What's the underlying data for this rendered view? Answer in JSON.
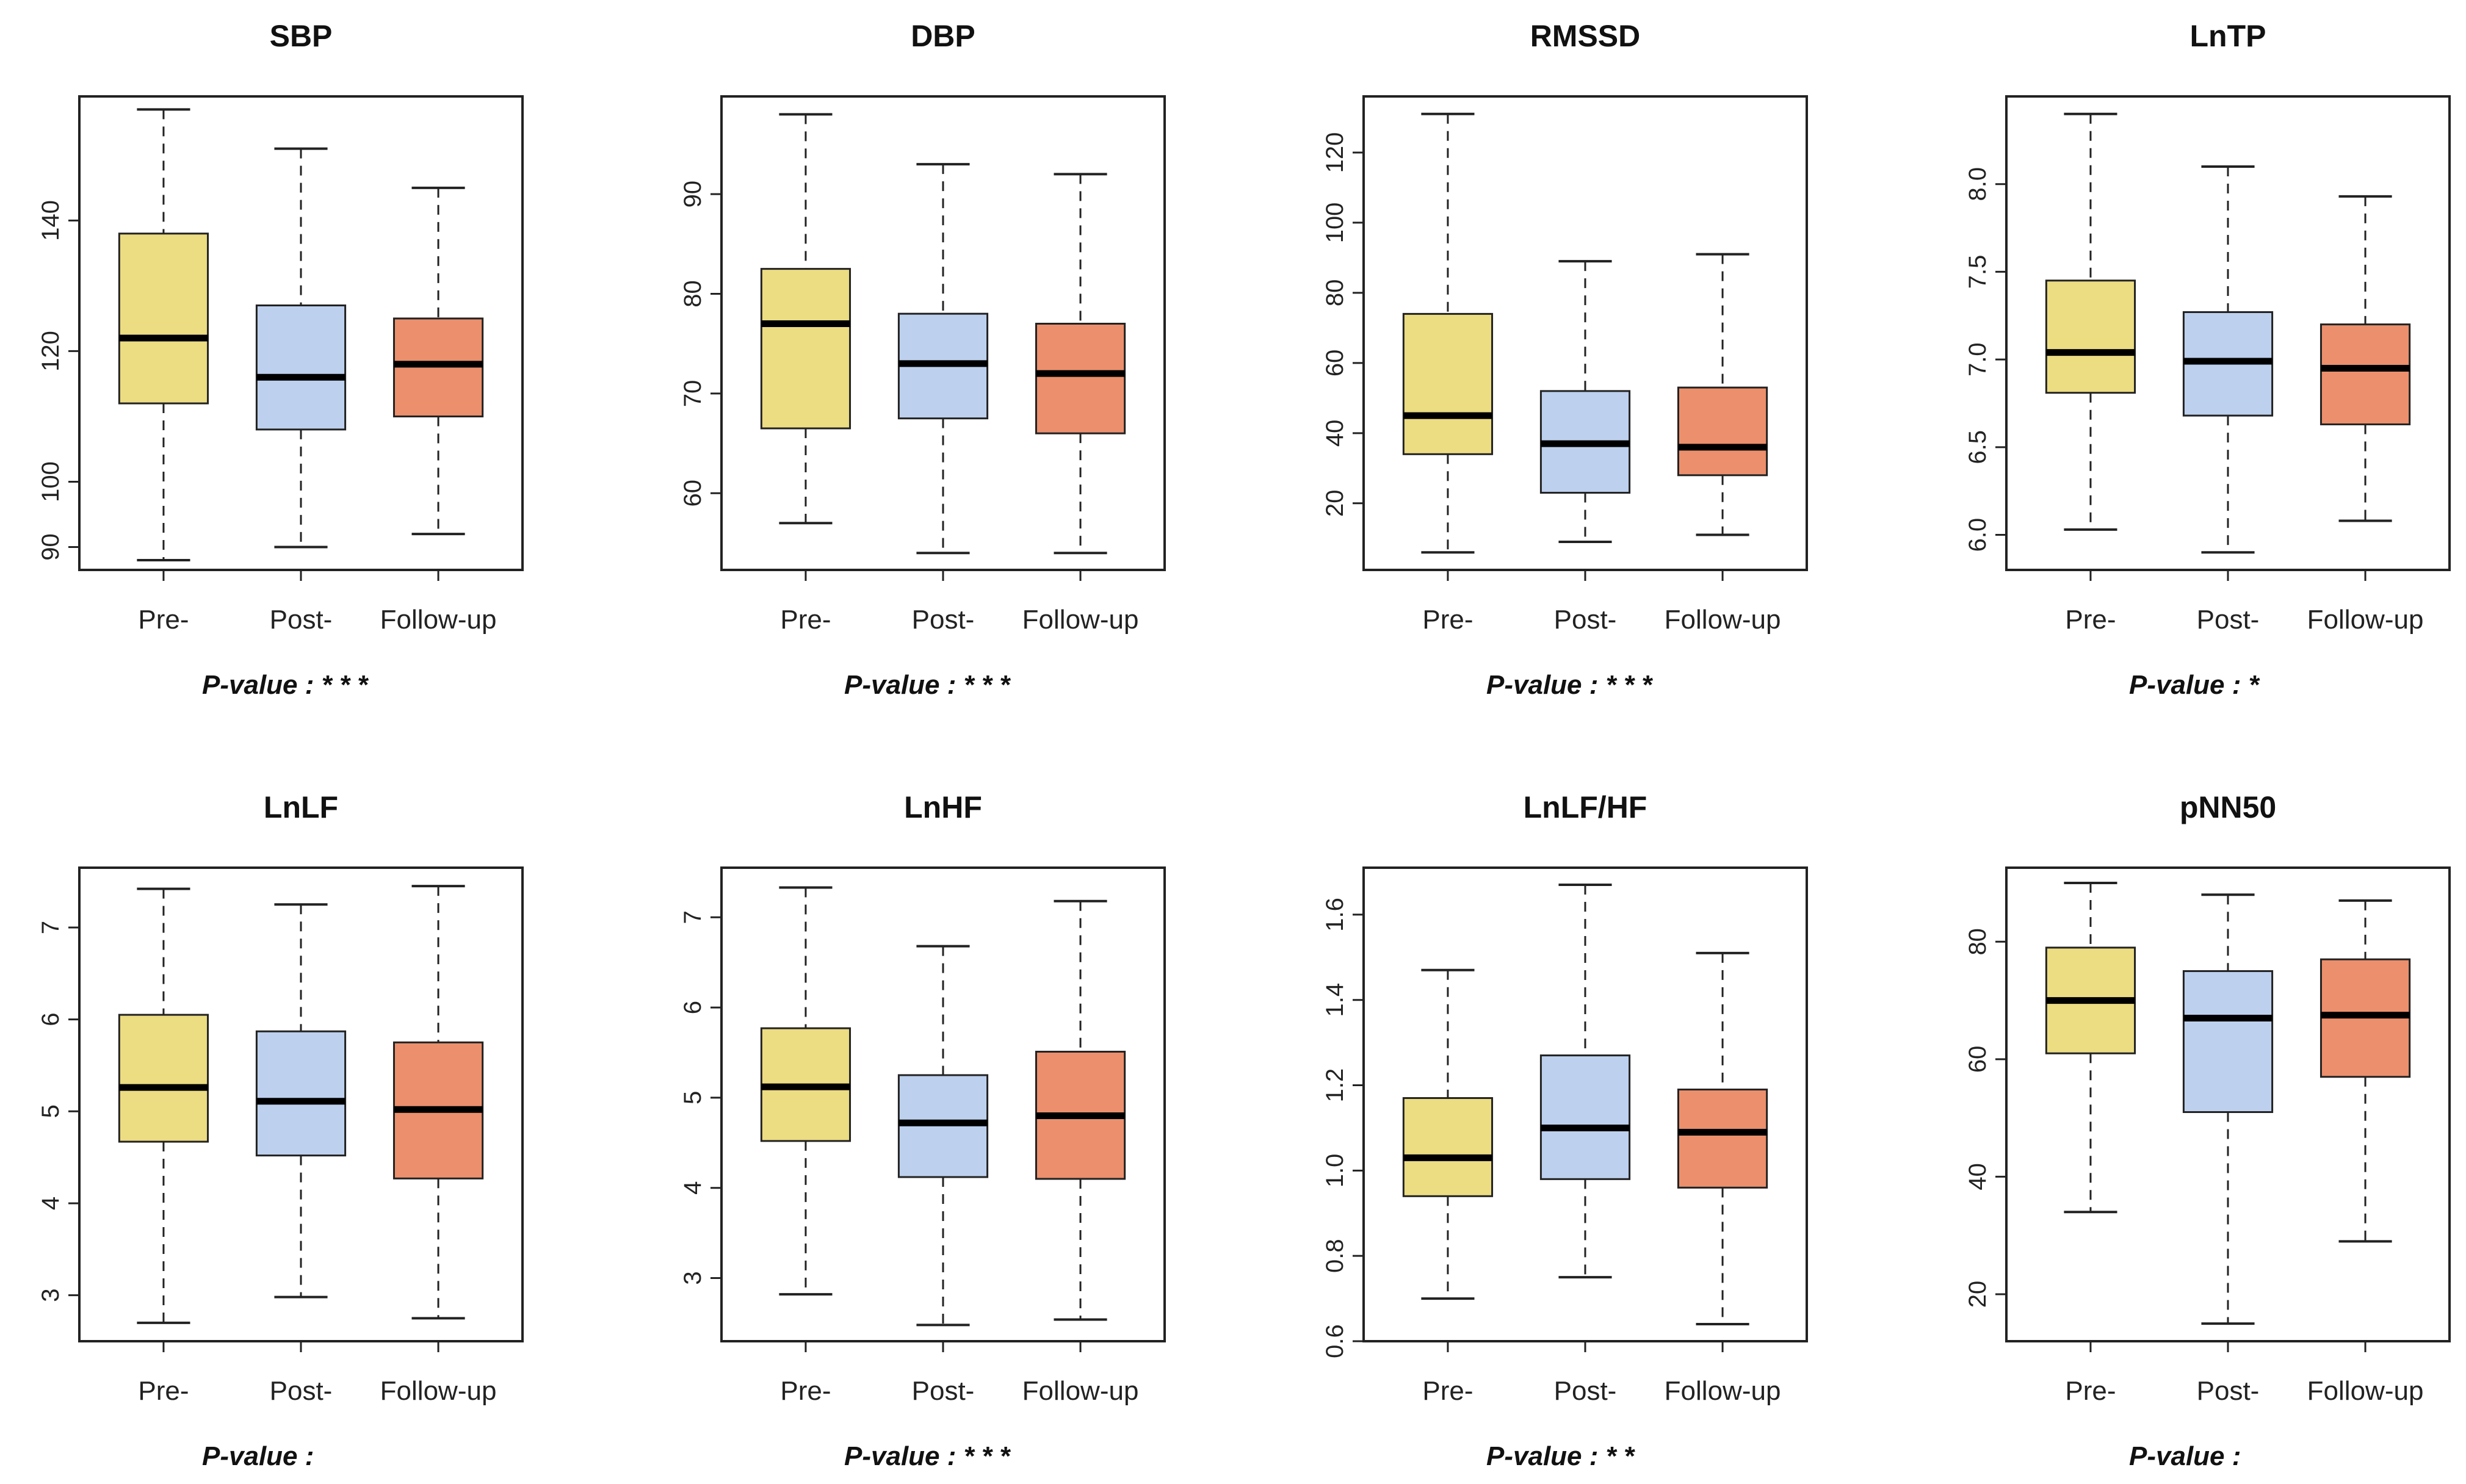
{
  "figure": {
    "background": "#ffffff"
  },
  "colors": {
    "Pre-": "#ecdc82",
    "Post-": "#bdd0ee",
    "Follow-up": "#ec8f6c"
  },
  "chart_data": [
    {
      "type": "boxplot",
      "title": "SBP",
      "categories": [
        "Pre-",
        "Post-",
        "Follow-up"
      ],
      "boxes": [
        {
          "lower_whisker": 88,
          "q1": 112,
          "median": 122,
          "q3": 138,
          "upper_whisker": 157
        },
        {
          "lower_whisker": 90,
          "q1": 108,
          "median": 116,
          "q3": 127,
          "upper_whisker": 151
        },
        {
          "lower_whisker": 92,
          "q1": 110,
          "median": 118,
          "q3": 125,
          "upper_whisker": 145
        }
      ],
      "yticks": [
        90,
        100,
        120,
        140
      ],
      "ylim": [
        86.5,
        159
      ],
      "pvalue_label": "P-value :",
      "pvalue_stars": "* * *"
    },
    {
      "type": "boxplot",
      "title": "DBP",
      "categories": [
        "Pre-",
        "Post-",
        "Follow-up"
      ],
      "boxes": [
        {
          "lower_whisker": 57,
          "q1": 66.5,
          "median": 77,
          "q3": 82.5,
          "upper_whisker": 98
        },
        {
          "lower_whisker": 54,
          "q1": 67.5,
          "median": 73,
          "q3": 78,
          "upper_whisker": 93
        },
        {
          "lower_whisker": 54,
          "q1": 66,
          "median": 72,
          "q3": 77,
          "upper_whisker": 92
        }
      ],
      "yticks": [
        60,
        70,
        80,
        90
      ],
      "ylim": [
        52.3,
        99.8
      ],
      "pvalue_label": "P-value :",
      "pvalue_stars": "* * *"
    },
    {
      "type": "boxplot",
      "title": "RMSSD",
      "categories": [
        "Pre-",
        "Post-",
        "Follow-up"
      ],
      "boxes": [
        {
          "lower_whisker": 6,
          "q1": 34,
          "median": 45,
          "q3": 74,
          "upper_whisker": 131
        },
        {
          "lower_whisker": 9,
          "q1": 23,
          "median": 37,
          "q3": 52,
          "upper_whisker": 89
        },
        {
          "lower_whisker": 11,
          "q1": 28,
          "median": 36,
          "q3": 53,
          "upper_whisker": 91
        }
      ],
      "yticks": [
        20,
        40,
        60,
        80,
        100,
        120
      ],
      "ylim": [
        1,
        136
      ],
      "pvalue_label": "P-value :",
      "pvalue_stars": "* * *"
    },
    {
      "type": "boxplot",
      "title": "LnTP",
      "categories": [
        "Pre-",
        "Post-",
        "Follow-up"
      ],
      "boxes": [
        {
          "lower_whisker": 6.03,
          "q1": 6.81,
          "median": 7.04,
          "q3": 7.45,
          "upper_whisker": 8.4
        },
        {
          "lower_whisker": 5.9,
          "q1": 6.68,
          "median": 6.99,
          "q3": 7.27,
          "upper_whisker": 8.1
        },
        {
          "lower_whisker": 6.08,
          "q1": 6.63,
          "median": 6.95,
          "q3": 7.2,
          "upper_whisker": 7.93
        }
      ],
      "yticks": [
        "6.0",
        "6.5",
        "7.0",
        "7.5",
        "8.0"
      ],
      "ylim": [
        5.8,
        8.5
      ],
      "pvalue_label": "P-value :",
      "pvalue_stars": "*"
    },
    {
      "type": "boxplot",
      "title": "LnLF",
      "categories": [
        "Pre-",
        "Post-",
        "Follow-up"
      ],
      "boxes": [
        {
          "lower_whisker": 2.7,
          "q1": 4.67,
          "median": 5.26,
          "q3": 6.05,
          "upper_whisker": 7.42
        },
        {
          "lower_whisker": 2.98,
          "q1": 4.52,
          "median": 5.11,
          "q3": 5.87,
          "upper_whisker": 7.25
        },
        {
          "lower_whisker": 2.75,
          "q1": 4.27,
          "median": 5.02,
          "q3": 5.75,
          "upper_whisker": 7.45
        }
      ],
      "yticks": [
        3,
        4,
        5,
        6,
        7
      ],
      "ylim": [
        2.5,
        7.65
      ],
      "pvalue_label": "P-value :",
      "pvalue_stars": ""
    },
    {
      "type": "boxplot",
      "title": "LnHF",
      "categories": [
        "Pre-",
        "Post-",
        "Follow-up"
      ],
      "boxes": [
        {
          "lower_whisker": 2.82,
          "q1": 4.52,
          "median": 5.12,
          "q3": 5.77,
          "upper_whisker": 7.33
        },
        {
          "lower_whisker": 2.48,
          "q1": 4.12,
          "median": 4.72,
          "q3": 5.25,
          "upper_whisker": 6.68
        },
        {
          "lower_whisker": 2.54,
          "q1": 4.1,
          "median": 4.8,
          "q3": 5.51,
          "upper_whisker": 7.18
        }
      ],
      "yticks": [
        3,
        4,
        5,
        6,
        7
      ],
      "ylim": [
        2.3,
        7.55
      ],
      "pvalue_label": "P-value :",
      "pvalue_stars": "* * *"
    },
    {
      "type": "boxplot",
      "title": "LnLF/HF",
      "categories": [
        "Pre-",
        "Post-",
        "Follow-up"
      ],
      "boxes": [
        {
          "lower_whisker": 0.7,
          "q1": 0.94,
          "median": 1.03,
          "q3": 1.17,
          "upper_whisker": 1.47
        },
        {
          "lower_whisker": 0.75,
          "q1": 0.98,
          "median": 1.1,
          "q3": 1.27,
          "upper_whisker": 1.67
        },
        {
          "lower_whisker": 0.64,
          "q1": 0.96,
          "median": 1.09,
          "q3": 1.19,
          "upper_whisker": 1.51
        }
      ],
      "yticks": [
        "0.6",
        "0.8",
        "1.0",
        "1.2",
        "1.4",
        "1.6"
      ],
      "ylim": [
        0.6,
        1.71
      ],
      "pvalue_label": "P-value :",
      "pvalue_stars": "* *"
    },
    {
      "type": "boxplot",
      "title": "pNN50",
      "categories": [
        "Pre-",
        "Post-",
        "Follow-up"
      ],
      "boxes": [
        {
          "lower_whisker": 34,
          "q1": 61,
          "median": 70,
          "q3": 79,
          "upper_whisker": 90
        },
        {
          "lower_whisker": 15,
          "q1": 51,
          "median": 67,
          "q3": 75,
          "upper_whisker": 88
        },
        {
          "lower_whisker": 29,
          "q1": 57,
          "median": 67.5,
          "q3": 77,
          "upper_whisker": 87
        }
      ],
      "yticks": [
        20,
        40,
        60,
        80
      ],
      "ylim": [
        12,
        92.6
      ],
      "pvalue_label": "P-value :",
      "pvalue_stars": ""
    }
  ]
}
